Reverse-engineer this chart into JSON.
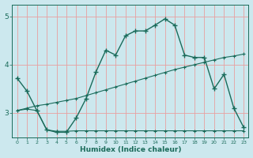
{
  "xlabel": "Humidex (Indice chaleur)",
  "background_color": "#cce8ee",
  "line_color": "#1a6b5a",
  "grid_color_v": "#e8a0a0",
  "grid_color_h": "#e8a0a0",
  "xlim": [
    -0.5,
    23.5
  ],
  "ylim": [
    2.5,
    5.25
  ],
  "yticks": [
    3,
    4,
    5
  ],
  "xticks": [
    0,
    1,
    2,
    3,
    4,
    5,
    6,
    7,
    8,
    9,
    10,
    11,
    12,
    13,
    14,
    15,
    16,
    17,
    18,
    19,
    20,
    21,
    22,
    23
  ],
  "series1_x": [
    0,
    1,
    2,
    3,
    4,
    5,
    6,
    7,
    8,
    9,
    10,
    11,
    12,
    13,
    14,
    15,
    16,
    17,
    18,
    19,
    20,
    21,
    22,
    23
  ],
  "series1_y": [
    3.72,
    3.45,
    3.05,
    2.65,
    2.6,
    2.6,
    2.9,
    3.3,
    3.85,
    4.3,
    4.2,
    4.6,
    4.7,
    4.7,
    4.82,
    4.95,
    4.82,
    4.2,
    4.15,
    4.15,
    3.5,
    3.8,
    3.1,
    2.7
  ],
  "series2_x": [
    0,
    1,
    2,
    3,
    4,
    5,
    6,
    7,
    8,
    9,
    10,
    11,
    12,
    13,
    14,
    15,
    16,
    17,
    18,
    19,
    20,
    21,
    22,
    23
  ],
  "series2_y": [
    3.05,
    3.08,
    3.05,
    2.65,
    2.62,
    2.62,
    2.63,
    2.63,
    2.63,
    2.63,
    2.63,
    2.63,
    2.63,
    2.63,
    2.63,
    2.63,
    2.63,
    2.63,
    2.63,
    2.63,
    2.63,
    2.63,
    2.63,
    2.63
  ],
  "series3_x": [
    0,
    1,
    2,
    3,
    4,
    5,
    6,
    7,
    8,
    9,
    10,
    11,
    12,
    13,
    14,
    15,
    16,
    17,
    18,
    19,
    20,
    21,
    22,
    23
  ],
  "series3_y": [
    3.05,
    3.1,
    3.15,
    3.18,
    3.22,
    3.26,
    3.3,
    3.36,
    3.42,
    3.48,
    3.54,
    3.6,
    3.66,
    3.72,
    3.78,
    3.84,
    3.9,
    3.95,
    4.0,
    4.05,
    4.1,
    4.15,
    4.18,
    4.22
  ]
}
